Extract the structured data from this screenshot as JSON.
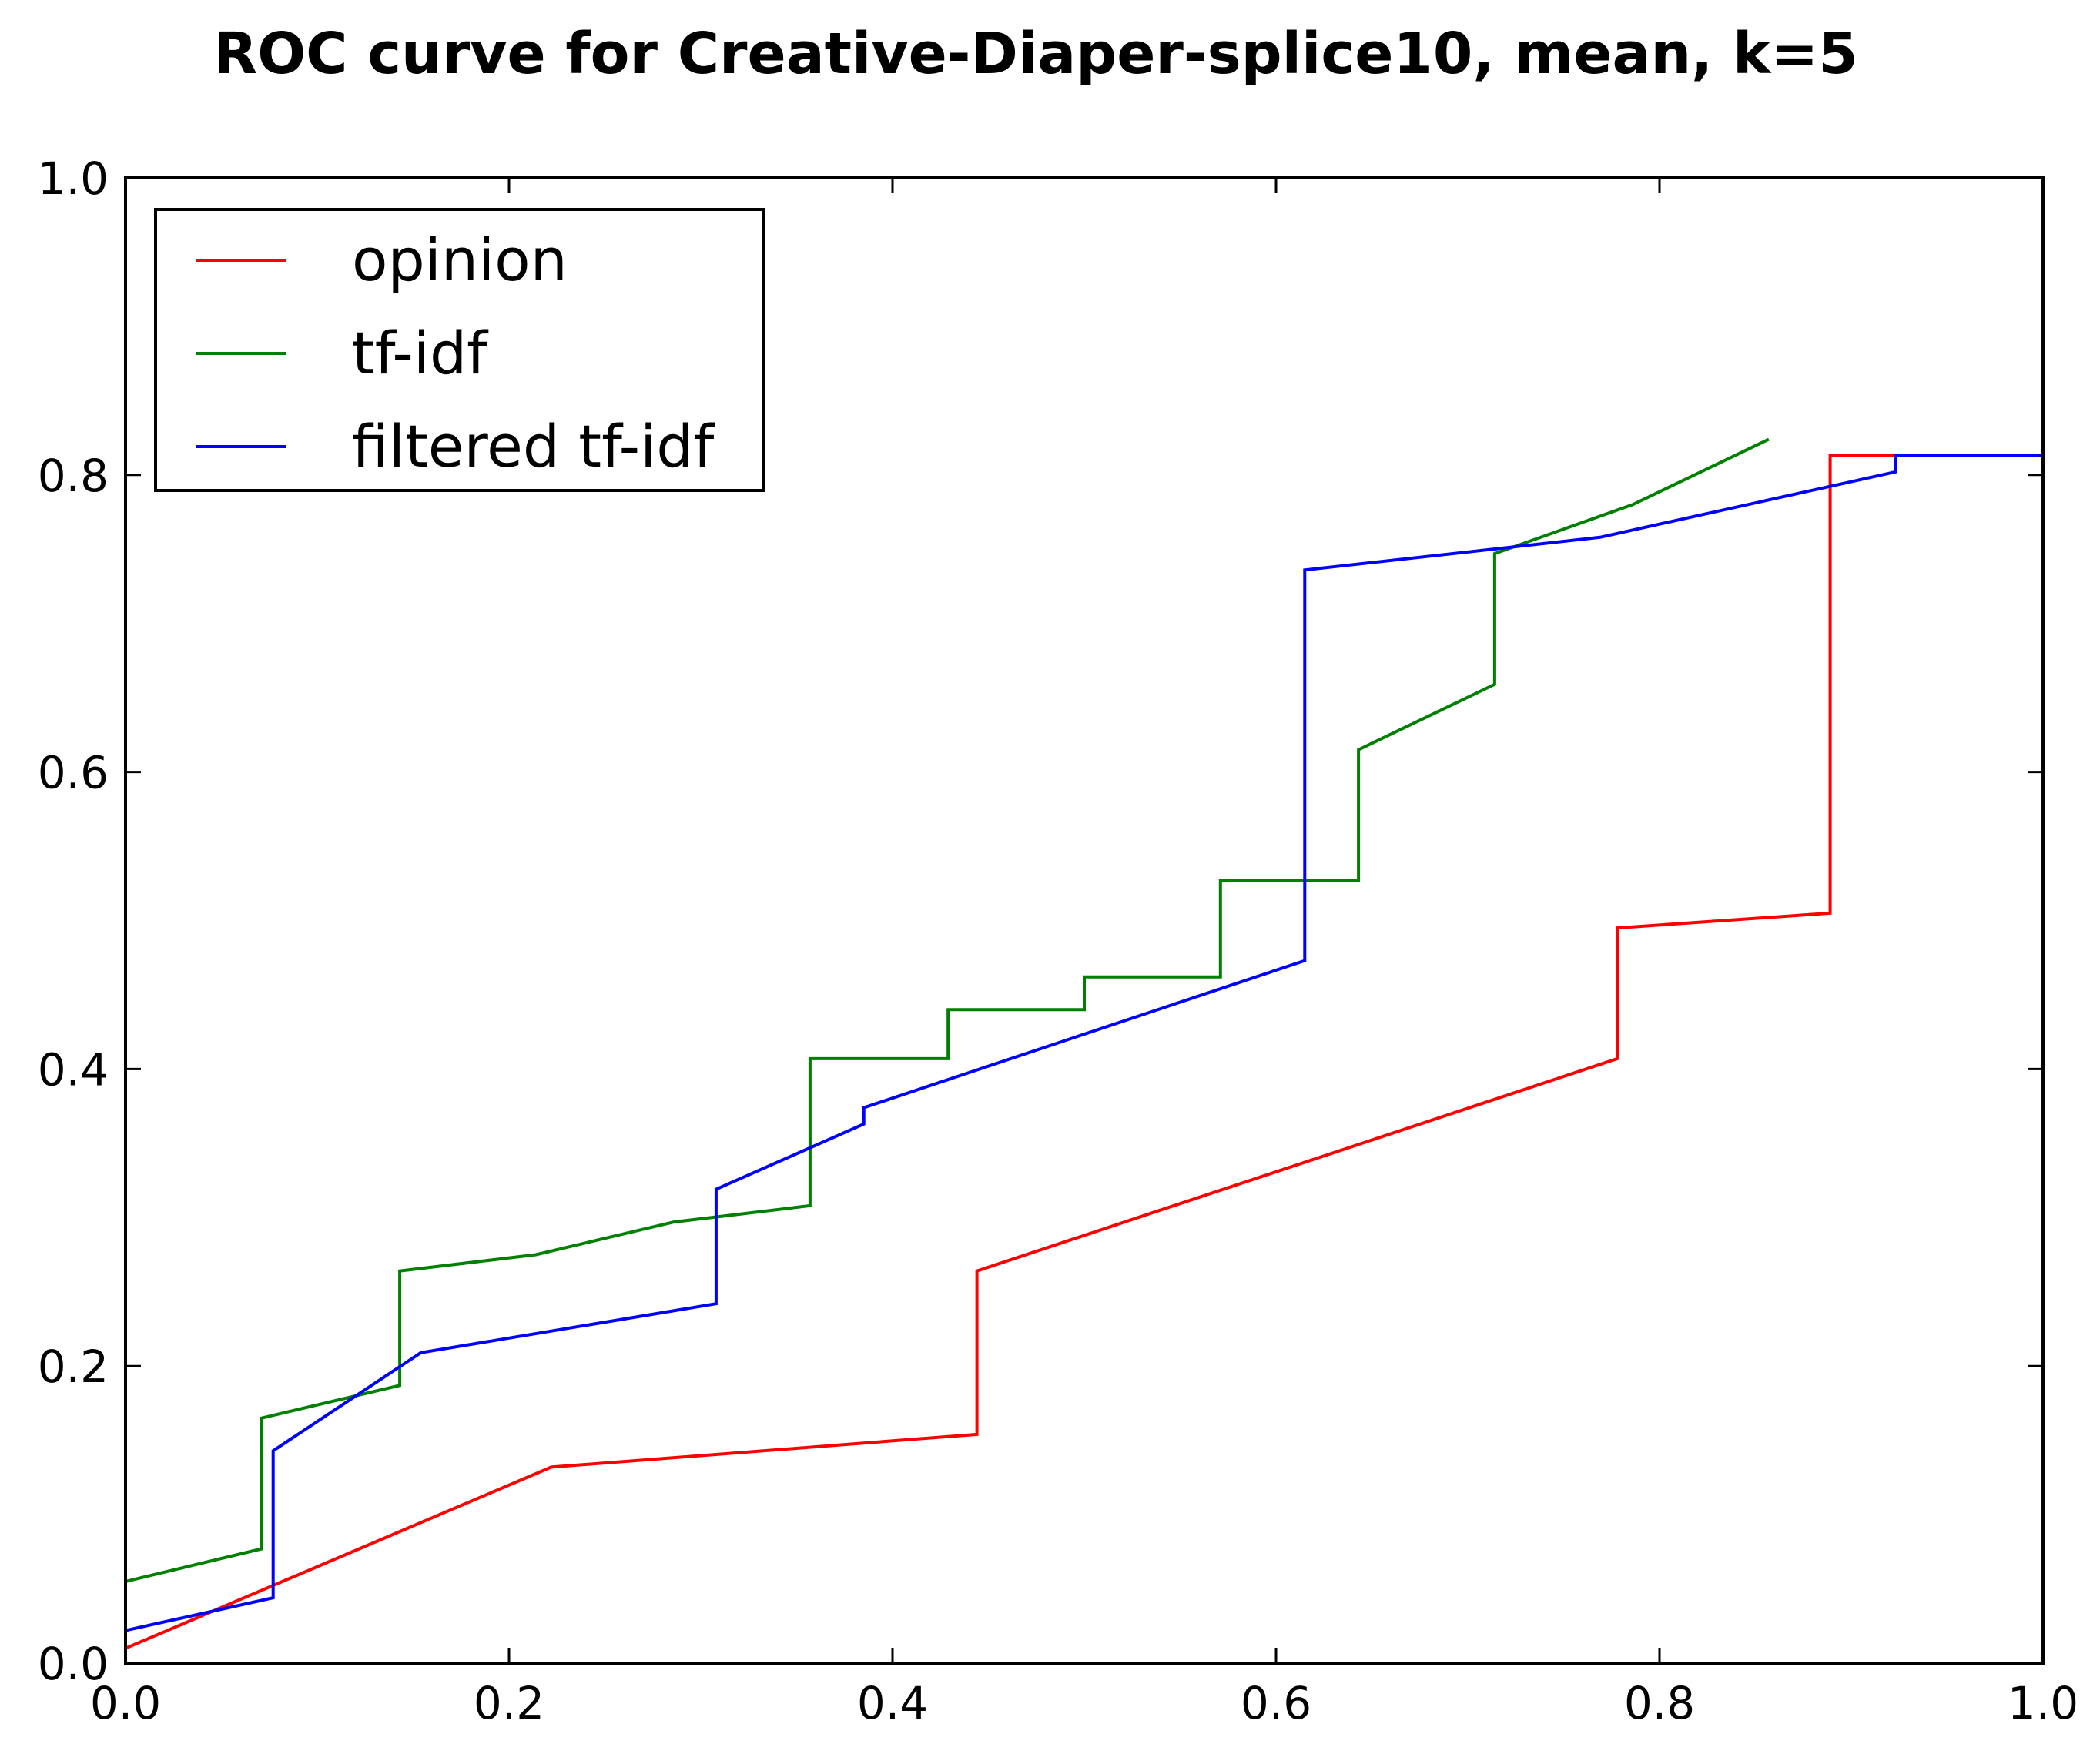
{
  "chart_data": {
    "type": "line",
    "title": "ROC curve for Creative-Diaper-splice10, mean, k=5",
    "xlabel": "",
    "ylabel": "",
    "xlim": [
      0.0,
      1.0
    ],
    "ylim": [
      0.0,
      1.0
    ],
    "xticks": [
      "0.0",
      "0.2",
      "0.4",
      "0.6",
      "0.8",
      "1.0"
    ],
    "yticks": [
      "0.0",
      "0.2",
      "0.4",
      "0.6",
      "0.8",
      "1.0"
    ],
    "grid": false,
    "legend_position": "upper left",
    "series": [
      {
        "name": "opinion",
        "color": "#ff0000",
        "points": [
          [
            0.0,
            0.01
          ],
          [
            0.222,
            0.132
          ],
          [
            0.444,
            0.154
          ],
          [
            0.444,
            0.264
          ],
          [
            0.778,
            0.407
          ],
          [
            0.778,
            0.495
          ],
          [
            0.889,
            0.505
          ],
          [
            0.889,
            0.813
          ],
          [
            1.0,
            0.813
          ]
        ]
      },
      {
        "name": "tf-idf",
        "color": "#008000",
        "points": [
          [
            0.0,
            0.055
          ],
          [
            0.071,
            0.077
          ],
          [
            0.071,
            0.165
          ],
          [
            0.143,
            0.187
          ],
          [
            0.143,
            0.264
          ],
          [
            0.214,
            0.275
          ],
          [
            0.286,
            0.297
          ],
          [
            0.357,
            0.308
          ],
          [
            0.357,
            0.407
          ],
          [
            0.429,
            0.407
          ],
          [
            0.429,
            0.44
          ],
          [
            0.5,
            0.44
          ],
          [
            0.5,
            0.462
          ],
          [
            0.571,
            0.462
          ],
          [
            0.571,
            0.527
          ],
          [
            0.643,
            0.527
          ],
          [
            0.643,
            0.615
          ],
          [
            0.714,
            0.659
          ],
          [
            0.714,
            0.747
          ],
          [
            0.786,
            0.78
          ],
          [
            0.857,
            0.824
          ]
        ]
      },
      {
        "name": "filtered tf-idf",
        "color": "#0000ff",
        "points": [
          [
            0.0,
            0.022
          ],
          [
            0.077,
            0.044
          ],
          [
            0.077,
            0.143
          ],
          [
            0.154,
            0.209
          ],
          [
            0.308,
            0.242
          ],
          [
            0.308,
            0.319
          ],
          [
            0.385,
            0.363
          ],
          [
            0.385,
            0.374
          ],
          [
            0.615,
            0.473
          ],
          [
            0.615,
            0.736
          ],
          [
            0.769,
            0.758
          ],
          [
            0.923,
            0.802
          ],
          [
            0.923,
            0.813
          ],
          [
            1.0,
            0.813
          ]
        ]
      }
    ]
  }
}
